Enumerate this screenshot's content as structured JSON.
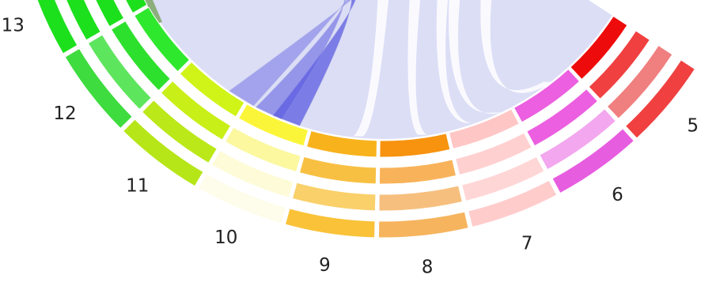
{
  "segments": [
    {
      "label": "5",
      "colors": [
        "#ee0b0b",
        "#f04040",
        "#f07f7f",
        "#f04040"
      ]
    },
    {
      "label": "6",
      "colors": [
        "#ec5fe0",
        "#ec5fe0",
        "#f2a7ee",
        "#e75de0"
      ]
    },
    {
      "label": "7",
      "colors": [
        "#ffc6c6",
        "#ffd0d0",
        "#ffd6d6",
        "#ffcccc"
      ]
    },
    {
      "label": "8",
      "colors": [
        "#f7930e",
        "#f8b35a",
        "#f7bf7e",
        "#f6b45e"
      ]
    },
    {
      "label": "9",
      "colors": [
        "#f8b21c",
        "#f8c042",
        "#fad06a",
        "#f9c238"
      ]
    },
    {
      "label": "10",
      "colors": [
        "#fbf53a",
        "#fbf8a0",
        "#fefbd8",
        "#fefcea"
      ]
    },
    {
      "label": "11",
      "colors": [
        "#d0f418",
        "#c8ef18",
        "#bbe818",
        "#b6e618"
      ]
    },
    {
      "label": "12",
      "colors": [
        "#2ee82e",
        "#2ee02e",
        "#5ee55e",
        "#3edc3e"
      ]
    },
    {
      "label": "13",
      "colors": [
        "#1de01d",
        "#1de01d",
        "#1de01d",
        "#1de01d"
      ]
    }
  ],
  "colors": {
    "chord_light": "#d6d8f4",
    "chord_dark": "#5c5ce2",
    "chord_green": "#8cae7c",
    "background": "#ffffff"
  }
}
